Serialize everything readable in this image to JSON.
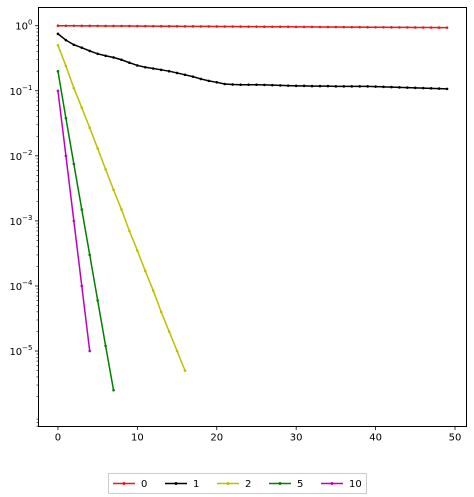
{
  "chart_data": {
    "type": "line",
    "title": "",
    "xlabel": "",
    "ylabel": "",
    "yscale": "log",
    "xlim": [
      -2.45,
      51.45
    ],
    "ylim_exp": [
      -6.16,
      0.28
    ],
    "xticks": [
      0,
      10,
      20,
      30,
      40,
      50
    ],
    "xtick_labels": [
      "0",
      "10",
      "20",
      "30",
      "40",
      "50"
    ],
    "yticks": [
      0,
      -1,
      -2,
      -3,
      -4,
      -5
    ],
    "ytick_labels": [
      {
        "base": "10",
        "exp": "0"
      },
      {
        "base": "10",
        "exp": "−1"
      },
      {
        "base": "10",
        "exp": "−2"
      },
      {
        "base": "10",
        "exp": "−3"
      },
      {
        "base": "10",
        "exp": "−4"
      },
      {
        "base": "10",
        "exp": "−5"
      }
    ],
    "grid": false,
    "legend_placement": "bottom-center",
    "series": [
      {
        "name": "0",
        "color": "#e41a1c",
        "x": [
          0,
          1,
          2,
          3,
          4,
          5,
          6,
          7,
          8,
          9,
          10,
          11,
          12,
          13,
          14,
          15,
          16,
          17,
          18,
          19,
          20,
          21,
          22,
          23,
          24,
          25,
          26,
          27,
          28,
          29,
          30,
          31,
          32,
          33,
          34,
          35,
          36,
          37,
          38,
          39,
          40,
          41,
          42,
          43,
          44,
          45,
          46,
          47,
          48,
          49
        ],
        "y": [
          1.0,
          0.999,
          0.998,
          0.996,
          0.995,
          0.994,
          0.992,
          0.991,
          0.99,
          0.988,
          0.987,
          0.986,
          0.984,
          0.983,
          0.982,
          0.98,
          0.979,
          0.978,
          0.976,
          0.975,
          0.974,
          0.972,
          0.971,
          0.97,
          0.968,
          0.967,
          0.966,
          0.964,
          0.963,
          0.962,
          0.96,
          0.959,
          0.958,
          0.956,
          0.955,
          0.954,
          0.952,
          0.951,
          0.95,
          0.948,
          0.947,
          0.946,
          0.944,
          0.943,
          0.942,
          0.94,
          0.939,
          0.938,
          0.936,
          0.935
        ]
      },
      {
        "name": "1",
        "color": "#000000",
        "x": [
          0,
          1,
          2,
          3,
          4,
          5,
          6,
          7,
          8,
          9,
          10,
          11,
          12,
          13,
          14,
          15,
          16,
          17,
          18,
          19,
          20,
          21,
          22,
          23,
          24,
          25,
          26,
          27,
          28,
          29,
          30,
          31,
          32,
          33,
          34,
          35,
          36,
          37,
          38,
          39,
          40,
          41,
          42,
          43,
          44,
          45,
          46,
          47,
          48,
          49
        ],
        "y": [
          0.75,
          0.6,
          0.51,
          0.46,
          0.41,
          0.37,
          0.345,
          0.325,
          0.3,
          0.27,
          0.245,
          0.23,
          0.22,
          0.21,
          0.2,
          0.188,
          0.176,
          0.165,
          0.152,
          0.142,
          0.135,
          0.127,
          0.125,
          0.124,
          0.124,
          0.124,
          0.123,
          0.122,
          0.121,
          0.12,
          0.119,
          0.119,
          0.118,
          0.118,
          0.118,
          0.117,
          0.117,
          0.117,
          0.117,
          0.117,
          0.116,
          0.115,
          0.114,
          0.113,
          0.112,
          0.111,
          0.11,
          0.109,
          0.108,
          0.107
        ]
      },
      {
        "name": "2",
        "color": "#bfbf00",
        "x": [
          0,
          1,
          2,
          3,
          4,
          5,
          6,
          7,
          8,
          9,
          10,
          11,
          12,
          13,
          14,
          15,
          16
        ],
        "y": [
          0.5,
          0.24,
          0.11,
          0.055,
          0.027,
          0.013,
          0.0062,
          0.003,
          0.0015,
          0.0007,
          0.00035,
          0.00017,
          8.5e-05,
          4e-05,
          2e-05,
          1e-05,
          5e-06
        ]
      },
      {
        "name": "5",
        "color": "#008000",
        "x": [
          0,
          1,
          2,
          3,
          4,
          5,
          6,
          7
        ],
        "y": [
          0.2,
          0.038,
          0.0075,
          0.0015,
          0.0003,
          6e-05,
          1.2e-05,
          2.5e-06
        ]
      },
      {
        "name": "10",
        "color": "#bf00bf",
        "x": [
          0,
          1,
          2,
          3,
          4
        ],
        "y": [
          0.1,
          0.01,
          0.001,
          0.0001,
          1e-05
        ]
      }
    ]
  }
}
